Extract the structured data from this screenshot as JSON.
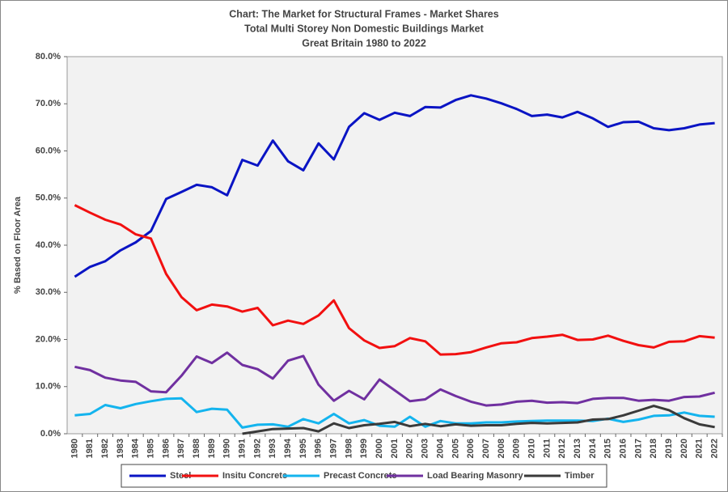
{
  "chart_data": {
    "type": "line",
    "title_lines": [
      "Chart: The Market for Structural Frames - Market Shares",
      "Total Multi Storey Non Domestic Buildings Market",
      "Great Britain 1980 to 2022"
    ],
    "y_label": "% Based on Floor Area",
    "categories": [
      "1980",
      "1981",
      "1982",
      "1983",
      "1984",
      "1985",
      "1986",
      "1987",
      "1988",
      "1989",
      "1990",
      "1991",
      "1992",
      "1993",
      "1994",
      "1995",
      "1996",
      "1997",
      "1998",
      "1999",
      "2000",
      "2001",
      "2002",
      "2003",
      "2004",
      "2005",
      "2006",
      "2007",
      "2008",
      "2009",
      "2010",
      "2011",
      "2012",
      "2013",
      "2014",
      "2015",
      "2016",
      "2017",
      "2018",
      "2019",
      "2020",
      "2021",
      "2022"
    ],
    "ylim": [
      0,
      80
    ],
    "yticks": [
      {
        "value": 0,
        "label": "0.0%"
      },
      {
        "value": 10,
        "label": "10.0%"
      },
      {
        "value": 20,
        "label": "20.0%"
      },
      {
        "value": 30,
        "label": "30.0%"
      },
      {
        "value": 40,
        "label": "40.0%"
      },
      {
        "value": 50,
        "label": "50.0%"
      },
      {
        "value": 60,
        "label": "60.0%"
      },
      {
        "value": 70,
        "label": "70.0%"
      },
      {
        "value": 80,
        "label": "80.0%"
      }
    ],
    "grid": false,
    "series": [
      {
        "name": "Steel",
        "color": "#0a14c4",
        "values": [
          33.3,
          35.4,
          36.6,
          38.9,
          40.6,
          43.0,
          49.8,
          51.3,
          52.8,
          52.3,
          50.6,
          58.1,
          56.9,
          62.2,
          57.8,
          55.9,
          61.6,
          58.2,
          65.1,
          68.0,
          66.6,
          68.1,
          67.4,
          69.3,
          69.2,
          70.8,
          71.8,
          71.1,
          70.1,
          68.9,
          67.4,
          67.7,
          67.1,
          68.3,
          66.9,
          65.1,
          66.1,
          66.2,
          64.8,
          64.4,
          64.8,
          65.6,
          65.9
        ]
      },
      {
        "name": "Insitu Concrete",
        "color": "#f21010",
        "values": [
          48.5,
          46.9,
          45.4,
          44.4,
          42.3,
          41.4,
          33.9,
          29.0,
          26.2,
          27.4,
          27.0,
          25.9,
          26.7,
          23.0,
          24.0,
          23.3,
          25.1,
          28.3,
          22.4,
          19.8,
          18.2,
          18.6,
          20.3,
          19.6,
          16.8,
          16.9,
          17.3,
          18.3,
          19.2,
          19.4,
          20.3,
          20.6,
          21.0,
          19.9,
          20.0,
          20.8,
          19.7,
          18.8,
          18.3,
          19.5,
          19.6,
          20.7,
          20.4
        ]
      },
      {
        "name": "Precast Concrete",
        "color": "#14b4ee",
        "values": [
          3.9,
          4.2,
          6.1,
          5.4,
          6.3,
          6.9,
          7.4,
          7.5,
          4.6,
          5.3,
          5.1,
          1.3,
          1.9,
          2.0,
          1.5,
          3.1,
          2.2,
          4.2,
          2.2,
          2.9,
          1.7,
          1.5,
          3.6,
          1.5,
          2.7,
          2.2,
          2.2,
          2.4,
          2.4,
          2.6,
          2.7,
          2.8,
          2.8,
          2.8,
          2.7,
          3.2,
          2.5,
          3.0,
          3.8,
          3.9,
          4.5,
          3.8,
          3.6
        ]
      },
      {
        "name": "Load Bearing Masonry",
        "color": "#7030a0",
        "values": [
          14.2,
          13.5,
          11.9,
          11.3,
          11.0,
          9.0,
          8.8,
          12.3,
          16.4,
          15.0,
          17.2,
          14.6,
          13.7,
          11.7,
          15.5,
          16.5,
          10.4,
          7.0,
          9.1,
          7.3,
          11.5,
          9.2,
          6.9,
          7.3,
          9.4,
          8.0,
          6.8,
          6.0,
          6.2,
          6.8,
          7.0,
          6.6,
          6.7,
          6.5,
          7.4,
          7.6,
          7.6,
          7.0,
          7.2,
          7.0,
          7.8,
          7.9,
          8.7
        ]
      },
      {
        "name": "Timber",
        "color": "#3a3a3a",
        "values": [
          null,
          null,
          null,
          null,
          null,
          null,
          null,
          null,
          null,
          null,
          null,
          0.0,
          0.5,
          1.0,
          1.1,
          1.2,
          0.5,
          2.2,
          1.2,
          1.8,
          2.1,
          2.5,
          1.6,
          2.1,
          1.6,
          2.0,
          1.7,
          1.8,
          1.8,
          2.1,
          2.3,
          2.2,
          2.3,
          2.4,
          3.0,
          3.1,
          3.9,
          4.9,
          5.9,
          5.0,
          3.3,
          2.0,
          1.4
        ]
      }
    ]
  }
}
